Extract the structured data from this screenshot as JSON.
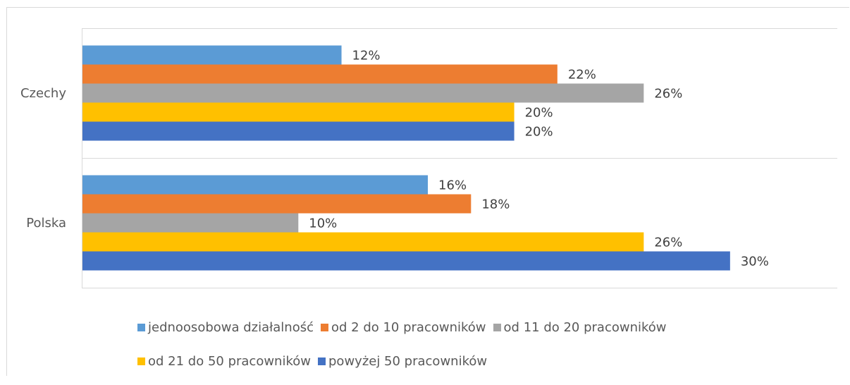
{
  "chart_data": {
    "type": "bar",
    "orientation": "horizontal",
    "categories": [
      "Czechy",
      "Polska"
    ],
    "series": [
      {
        "name": "jednoosobowa działalność",
        "color": "#5B9BD5",
        "values": [
          12,
          16
        ],
        "labels": [
          "12%",
          "16%"
        ]
      },
      {
        "name": "od 2 do 10 pracowników",
        "color": "#ED7D31",
        "values": [
          22,
          18
        ],
        "labels": [
          "22%",
          "18%"
        ]
      },
      {
        "name": "od 11 do 20 pracowników",
        "color": "#A5A5A5",
        "values": [
          26,
          10
        ],
        "labels": [
          "26%",
          "10%"
        ]
      },
      {
        "name": "od 21 do 50 pracowników",
        "color": "#FFC000",
        "values": [
          20,
          26
        ],
        "labels": [
          "20%",
          "26%"
        ]
      },
      {
        "name": "powyżej 50 pracowników",
        "color": "#4472C4",
        "values": [
          20,
          30
        ],
        "labels": [
          "20%",
          "30%"
        ]
      }
    ],
    "xlim": [
      0,
      35
    ],
    "grid": false,
    "legend": "bottom",
    "title": "",
    "xlabel": "",
    "ylabel": ""
  }
}
